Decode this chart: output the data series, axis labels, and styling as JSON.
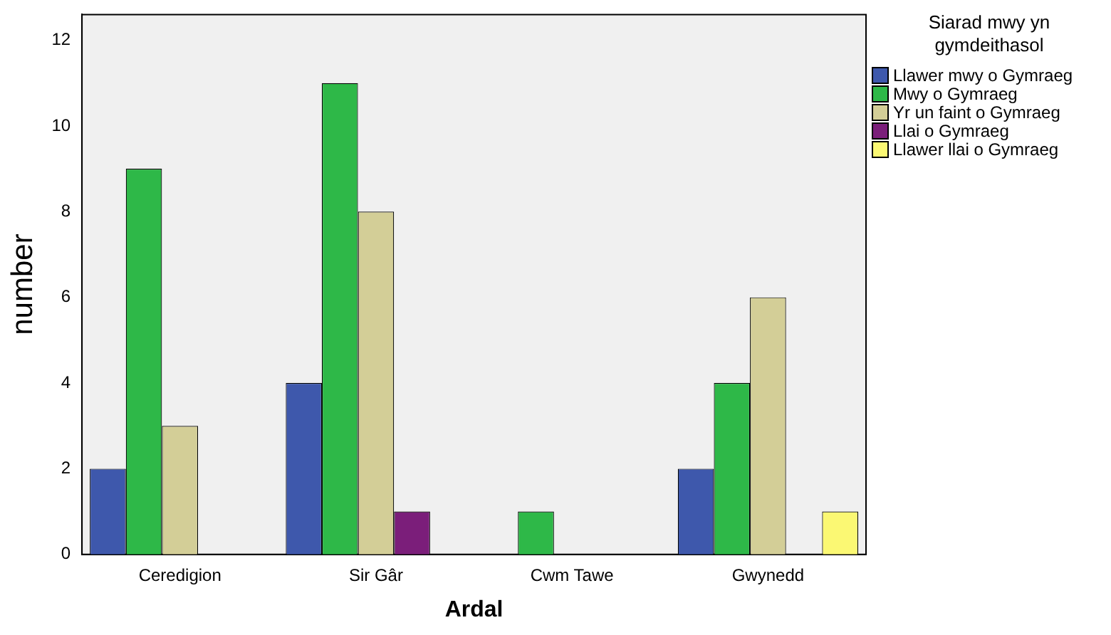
{
  "chart_data": {
    "type": "bar",
    "xlabel": "Ardal",
    "ylabel": "number",
    "legend_title": "Siarad mwy yn gymdeithasol",
    "legend": "right",
    "grid": false,
    "categories": [
      "Ceredigion",
      "Sir Gâr",
      "Cwm Tawe",
      "Gwynedd"
    ],
    "ylim": [
      0,
      12.6
    ],
    "yticks": [
      0,
      2,
      4,
      6,
      8,
      10,
      12
    ],
    "series": [
      {
        "name": "Llawer mwy o Gymraeg",
        "color": "#3e58ac",
        "values": [
          2,
          4,
          null,
          2
        ]
      },
      {
        "name": "Mwy o Gymraeg",
        "color": "#2eb848",
        "values": [
          9,
          11,
          1,
          4
        ]
      },
      {
        "name": "Yr un faint o Gymraeg",
        "color": "#d3ce97",
        "values": [
          3,
          8,
          null,
          6
        ]
      },
      {
        "name": "Llai o Gymraeg",
        "color": "#7b1e7a",
        "values": [
          null,
          1,
          null,
          null
        ]
      },
      {
        "name": "Llawer llai o Gymraeg",
        "color": "#fbf873",
        "values": [
          null,
          null,
          null,
          1
        ]
      }
    ]
  }
}
